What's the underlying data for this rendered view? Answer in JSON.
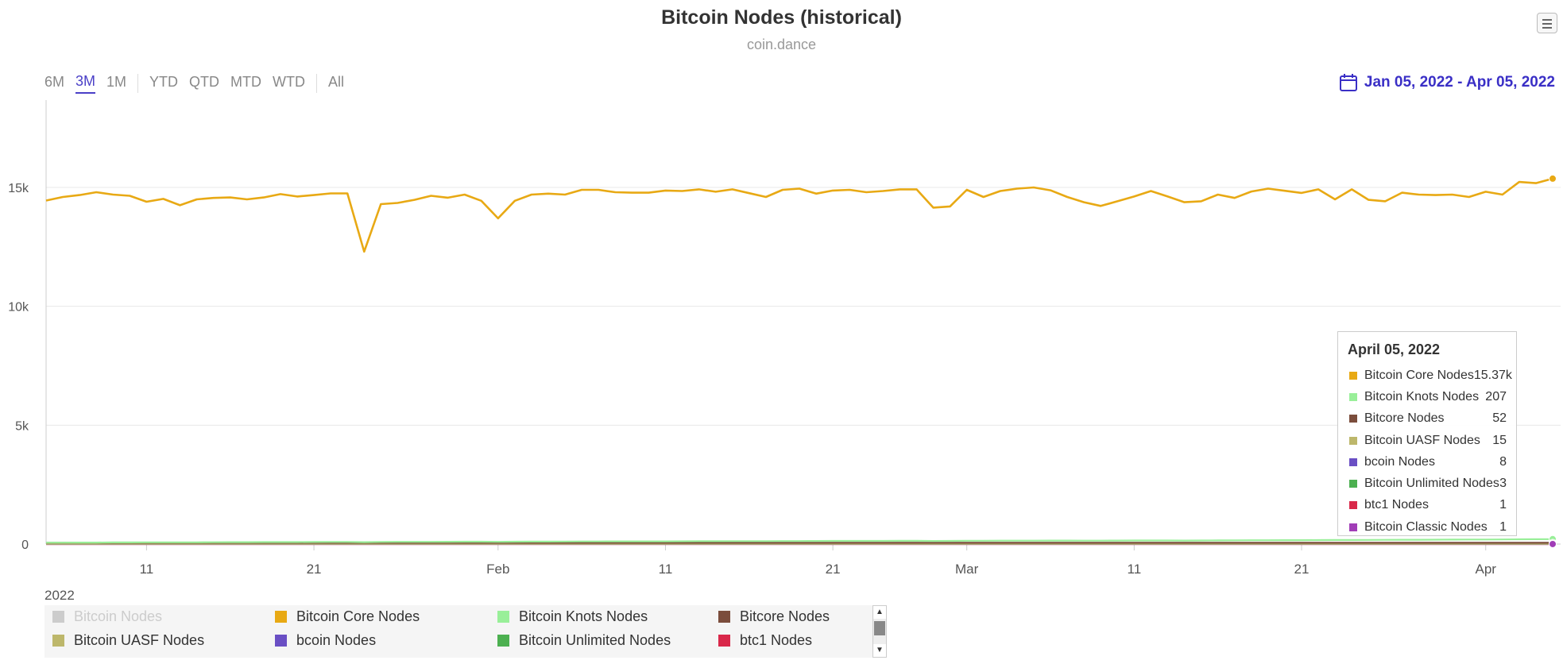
{
  "title": "Bitcoin Nodes (historical)",
  "subtitle": "coin.dance",
  "range_selector": {
    "buttons": [
      {
        "label": "6M",
        "active": false
      },
      {
        "label": "3M",
        "active": true
      },
      {
        "label": "1M",
        "active": false
      },
      {
        "label": "YTD",
        "active": false
      },
      {
        "label": "QTD",
        "active": false
      },
      {
        "label": "MTD",
        "active": false
      },
      {
        "label": "WTD",
        "active": false
      },
      {
        "label": "All",
        "active": false
      }
    ]
  },
  "date_range": "Jan 05, 2022 - Apr 05, 2022",
  "colors": {
    "core": "#e8a914",
    "knots": "#99ef99",
    "bitcore": "#7b4d3c",
    "uasf": "#bdb76b",
    "bcoin": "#6a4fc4",
    "unlimited": "#4cb050",
    "btc1": "#d9284a",
    "classic": "#a13db7",
    "nodes": "#cccccc",
    "accent": "#3a2fc6"
  },
  "tooltip": {
    "date": "April 05, 2022",
    "rows": [
      {
        "name": "Bitcoin Core Nodes",
        "value": "15.37k",
        "color": "#e8a914"
      },
      {
        "name": "Bitcoin Knots Nodes",
        "value": "207",
        "color": "#99ef99"
      },
      {
        "name": "Bitcore Nodes",
        "value": "52",
        "color": "#7b4d3c"
      },
      {
        "name": "Bitcoin UASF Nodes",
        "value": "15",
        "color": "#bdb76b"
      },
      {
        "name": "bcoin Nodes",
        "value": "8",
        "color": "#6a4fc4"
      },
      {
        "name": "Bitcoin Unlimited Nodes",
        "value": "3",
        "color": "#4cb050"
      },
      {
        "name": "btc1 Nodes",
        "value": "1",
        "color": "#d9284a"
      },
      {
        "name": "Bitcoin Classic Nodes",
        "value": "1",
        "color": "#a13db7"
      }
    ]
  },
  "legend": {
    "items": [
      {
        "name": "Bitcoin Nodes",
        "color": "#cccccc",
        "hidden": true
      },
      {
        "name": "Bitcoin Core Nodes",
        "color": "#e8a914",
        "hidden": false
      },
      {
        "name": "Bitcoin Knots Nodes",
        "color": "#99ef99",
        "hidden": false
      },
      {
        "name": "Bitcore Nodes",
        "color": "#7b4d3c",
        "hidden": false
      },
      {
        "name": "Bitcoin UASF Nodes",
        "color": "#bdb76b",
        "hidden": false
      },
      {
        "name": "bcoin Nodes",
        "color": "#6a4fc4",
        "hidden": false
      },
      {
        "name": "Bitcoin Unlimited Nodes",
        "color": "#4cb050",
        "hidden": false
      },
      {
        "name": "btc1 Nodes",
        "color": "#d9284a",
        "hidden": false
      }
    ]
  },
  "chart_data": {
    "type": "line",
    "title": "Bitcoin Nodes (historical)",
    "subtitle": "coin.dance",
    "x_start": "2022-01-05",
    "x_end": "2022-04-05",
    "ylim": [
      0,
      18500
    ],
    "y_ticks": [
      0,
      5000,
      10000,
      15000
    ],
    "y_tick_labels": [
      "0",
      "5k",
      "10k",
      "15k"
    ],
    "x_ticks": [
      {
        "date": "2022-01-11",
        "label": "11"
      },
      {
        "date": "2022-01-21",
        "label": "21"
      },
      {
        "date": "2022-02-01",
        "label": "Feb"
      },
      {
        "date": "2022-02-11",
        "label": "11"
      },
      {
        "date": "2022-02-21",
        "label": "21"
      },
      {
        "date": "2022-03-01",
        "label": "Mar"
      },
      {
        "date": "2022-03-11",
        "label": "11"
      },
      {
        "date": "2022-03-21",
        "label": "21"
      },
      {
        "date": "2022-04-01",
        "label": "Apr"
      }
    ],
    "x_axis_year": "2022",
    "grid": true,
    "series": [
      {
        "name": "Bitcoin Core Nodes",
        "color": "#e8a914",
        "values": [
          14450,
          14600,
          14680,
          14800,
          14700,
          14650,
          14400,
          14520,
          14250,
          14500,
          14560,
          14580,
          14500,
          14580,
          14720,
          14620,
          14680,
          14750,
          14750,
          12300,
          14300,
          14350,
          14480,
          14650,
          14570,
          14700,
          14440,
          13700,
          14440,
          14700,
          14740,
          14700,
          14900,
          14900,
          14800,
          14780,
          14780,
          14870,
          14850,
          14920,
          14820,
          14920,
          14760,
          14600,
          14900,
          14950,
          14740,
          14870,
          14900,
          14800,
          14850,
          14920,
          14920,
          14150,
          14200,
          14900,
          14600,
          14850,
          14950,
          15000,
          14880,
          14600,
          14380,
          14220,
          14420,
          14620,
          14850,
          14620,
          14380,
          14420,
          14700,
          14560,
          14830,
          14950,
          14860,
          14770,
          14920,
          14500,
          14920,
          14480,
          14420,
          14780,
          14700,
          14680,
          14700,
          14600,
          14820,
          14700,
          15230,
          15180,
          15370
        ]
      },
      {
        "name": "Bitcoin Knots Nodes",
        "color": "#99ef99",
        "values": [
          60,
          60,
          65,
          65,
          70,
          70,
          72,
          72,
          75,
          75,
          78,
          80,
          80,
          82,
          85,
          85,
          88,
          90,
          90,
          80,
          90,
          92,
          95,
          95,
          98,
          100,
          100,
          95,
          100,
          102,
          105,
          108,
          110,
          110,
          112,
          112,
          115,
          115,
          118,
          120,
          120,
          122,
          125,
          125,
          128,
          128,
          130,
          132,
          132,
          135,
          135,
          138,
          138,
          130,
          132,
          140,
          140,
          142,
          145,
          145,
          148,
          148,
          145,
          142,
          148,
          150,
          152,
          150,
          148,
          150,
          155,
          158,
          160,
          162,
          165,
          165,
          168,
          170,
          172,
          175,
          178,
          180,
          182,
          185,
          188,
          190,
          192,
          195,
          200,
          203,
          207
        ]
      },
      {
        "name": "Bitcore Nodes",
        "color": "#7b4d3c",
        "values": [
          52,
          52,
          52,
          52,
          52,
          52,
          52,
          52,
          52,
          52,
          52,
          52,
          52,
          52,
          52,
          52,
          52,
          52,
          52,
          52,
          52,
          52,
          52,
          52,
          52,
          52,
          52,
          52,
          52,
          52,
          52,
          52,
          52,
          52,
          52,
          52,
          52,
          52,
          52,
          52,
          52,
          52,
          52,
          52,
          52,
          52,
          52,
          52,
          52,
          52,
          52,
          52,
          52,
          52,
          52,
          52,
          52,
          52,
          52,
          52,
          52,
          52,
          52,
          52,
          52,
          52,
          52,
          52,
          52,
          52,
          52,
          52,
          52,
          52,
          52,
          52,
          52,
          52,
          52,
          52,
          52,
          52,
          52,
          52,
          52,
          52,
          52,
          52,
          52,
          52,
          52
        ]
      },
      {
        "name": "Bitcoin UASF Nodes",
        "color": "#bdb76b",
        "values": [
          15,
          15,
          15,
          15,
          15,
          15,
          15,
          15,
          15,
          15,
          15,
          15,
          15,
          15,
          15,
          15,
          15,
          15,
          15,
          15,
          15,
          15,
          15,
          15,
          15,
          15,
          15,
          15,
          15,
          15,
          15,
          15,
          15,
          15,
          15,
          15,
          15,
          15,
          15,
          15,
          15,
          15,
          15,
          15,
          15,
          15,
          15,
          15,
          15,
          15,
          15,
          15,
          15,
          15,
          15,
          15,
          15,
          15,
          15,
          15,
          15,
          15,
          15,
          15,
          15,
          15,
          15,
          15,
          15,
          15,
          15,
          15,
          15,
          15,
          15,
          15,
          15,
          15,
          15,
          15,
          15,
          15,
          15,
          15,
          15,
          15,
          15,
          15,
          15,
          15,
          15
        ]
      },
      {
        "name": "bcoin Nodes",
        "color": "#6a4fc4",
        "values": [
          8,
          8,
          8,
          8,
          8,
          8,
          8,
          8,
          8,
          8,
          8,
          8,
          8,
          8,
          8,
          8,
          8,
          8,
          8,
          8,
          8,
          8,
          8,
          8,
          8,
          8,
          8,
          8,
          8,
          8,
          8,
          8,
          8,
          8,
          8,
          8,
          8,
          8,
          8,
          8,
          8,
          8,
          8,
          8,
          8,
          8,
          8,
          8,
          8,
          8,
          8,
          8,
          8,
          8,
          8,
          8,
          8,
          8,
          8,
          8,
          8,
          8,
          8,
          8,
          8,
          8,
          8,
          8,
          8,
          8,
          8,
          8,
          8,
          8,
          8,
          8,
          8,
          8,
          8,
          8,
          8,
          8,
          8,
          8,
          8,
          8,
          8,
          8,
          8,
          8,
          8
        ]
      },
      {
        "name": "Bitcoin Unlimited Nodes",
        "color": "#4cb050",
        "values": [
          3,
          3,
          3,
          3,
          3,
          3,
          3,
          3,
          3,
          3,
          3,
          3,
          3,
          3,
          3,
          3,
          3,
          3,
          3,
          3,
          3,
          3,
          3,
          3,
          3,
          3,
          3,
          3,
          3,
          3,
          3,
          3,
          3,
          3,
          3,
          3,
          3,
          3,
          3,
          3,
          3,
          3,
          3,
          3,
          3,
          3,
          3,
          3,
          3,
          3,
          3,
          3,
          3,
          3,
          3,
          3,
          3,
          3,
          3,
          3,
          3,
          3,
          3,
          3,
          3,
          3,
          3,
          3,
          3,
          3,
          3,
          3,
          3,
          3,
          3,
          3,
          3,
          3,
          3,
          3,
          3,
          3,
          3,
          3,
          3,
          3,
          3,
          3,
          3,
          3,
          3
        ]
      },
      {
        "name": "btc1 Nodes",
        "color": "#d9284a",
        "values": [
          1,
          1,
          1,
          1,
          1,
          1,
          1,
          1,
          1,
          1,
          1,
          1,
          1,
          1,
          1,
          1,
          1,
          1,
          1,
          1,
          1,
          1,
          1,
          1,
          1,
          1,
          1,
          1,
          1,
          1,
          1,
          1,
          1,
          1,
          1,
          1,
          1,
          1,
          1,
          1,
          1,
          1,
          1,
          1,
          1,
          1,
          1,
          1,
          1,
          1,
          1,
          1,
          1,
          1,
          1,
          1,
          1,
          1,
          1,
          1,
          1,
          1,
          1,
          1,
          1,
          1,
          1,
          1,
          1,
          1,
          1,
          1,
          1,
          1,
          1,
          1,
          1,
          1,
          1,
          1,
          1,
          1,
          1,
          1,
          1,
          1,
          1,
          1,
          1,
          1,
          1
        ]
      },
      {
        "name": "Bitcoin Classic Nodes",
        "color": "#a13db7",
        "values": [
          1,
          1,
          1,
          1,
          1,
          1,
          1,
          1,
          1,
          1,
          1,
          1,
          1,
          1,
          1,
          1,
          1,
          1,
          1,
          1,
          1,
          1,
          1,
          1,
          1,
          1,
          1,
          1,
          1,
          1,
          1,
          1,
          1,
          1,
          1,
          1,
          1,
          1,
          1,
          1,
          1,
          1,
          1,
          1,
          1,
          1,
          1,
          1,
          1,
          1,
          1,
          1,
          1,
          1,
          1,
          1,
          1,
          1,
          1,
          1,
          1,
          1,
          1,
          1,
          1,
          1,
          1,
          1,
          1,
          1,
          1,
          1,
          1,
          1,
          1,
          1,
          1,
          1,
          1,
          1,
          1,
          1,
          1,
          1,
          1,
          1,
          1,
          1,
          1,
          1,
          1
        ]
      }
    ]
  }
}
